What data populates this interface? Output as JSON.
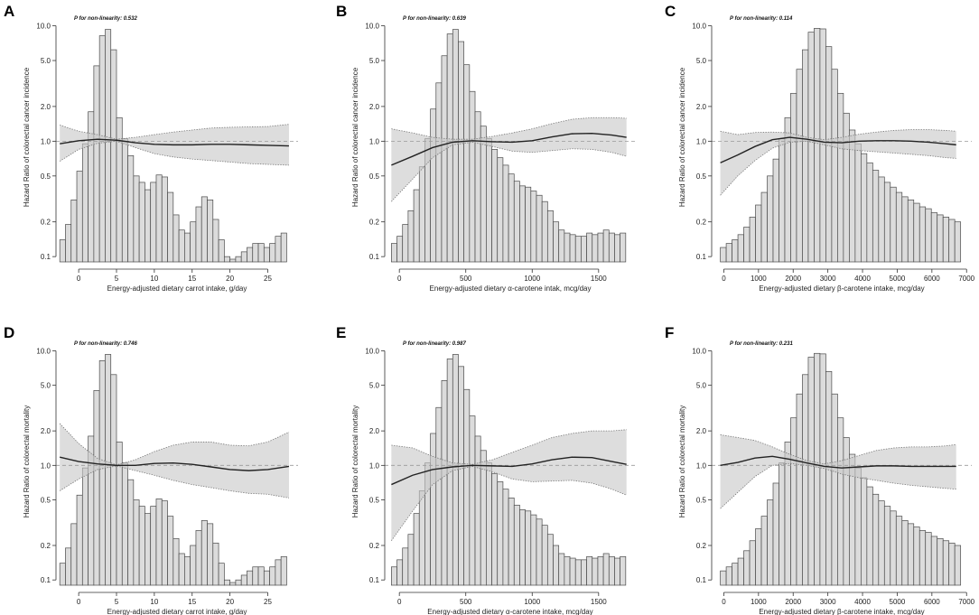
{
  "chart_data": [
    {
      "panel": "A",
      "type": "bar",
      "xlabel": "Energy-adjusted dietary carrot intake, g/day",
      "ylabel": "Hazard Ratio of colorectal cancer incidence",
      "annotation": "P for non-linearity: 0.532",
      "xlim": [
        -3,
        29
      ],
      "xticks": [
        0,
        5,
        10,
        15,
        20,
        25
      ],
      "xtick_labels": [
        "0",
        "5",
        "10",
        "15",
        "20",
        "25"
      ],
      "yticks": [
        0.1,
        0.2,
        0.5,
        1.0,
        2.0,
        5.0,
        10.0
      ],
      "ytick_labels": [
        "0.1",
        "0.2",
        "0.5",
        "1.0",
        "2.0",
        "5.0",
        "10.0"
      ],
      "ylim": [
        0.09,
        13
      ],
      "reference_line": 1.0,
      "bins": {
        "start": -2.5,
        "width": 0.75
      },
      "values": [
        0.14,
        0.19,
        0.31,
        0.55,
        0.95,
        1.8,
        4.5,
        8.2,
        9.3,
        6.2,
        1.6,
        1.05,
        0.75,
        0.5,
        0.44,
        0.38,
        0.44,
        0.51,
        0.49,
        0.36,
        0.23,
        0.17,
        0.16,
        0.2,
        0.27,
        0.33,
        0.31,
        0.21,
        0.14,
        0.1,
        0.095,
        0.1,
        0.11,
        0.12,
        0.13,
        0.13,
        0.12,
        0.13,
        0.15,
        0.16
      ],
      "hr_x": [
        -2.5,
        0,
        2.5,
        5,
        7.5,
        10,
        12.5,
        15,
        17.5,
        20,
        22.5,
        25,
        27.8
      ],
      "hr": [
        0.95,
        1.01,
        1.04,
        1.02,
        0.97,
        0.94,
        0.93,
        0.93,
        0.94,
        0.94,
        0.93,
        0.92,
        0.91
      ],
      "ci_lower": [
        0.67,
        0.85,
        0.96,
        1.0,
        0.88,
        0.78,
        0.73,
        0.7,
        0.68,
        0.66,
        0.64,
        0.63,
        0.62
      ],
      "ci_upper": [
        1.38,
        1.22,
        1.14,
        1.04,
        1.08,
        1.14,
        1.2,
        1.25,
        1.3,
        1.32,
        1.33,
        1.34,
        1.4
      ]
    },
    {
      "panel": "B",
      "type": "bar",
      "xlabel": "Energy-adjusted dietary α-carotene intak, mcg/day",
      "ylabel": "Hazard Ratio of colorectal cancer incidence",
      "annotation": "P for non-linearity: 0.639",
      "xlim": [
        -110,
        1780
      ],
      "xticks": [
        0,
        500,
        1000,
        1500
      ],
      "xtick_labels": [
        "0",
        "500",
        "1000",
        "1500"
      ],
      "yticks": [
        0.1,
        0.2,
        0.5,
        1.0,
        2.0,
        5.0,
        10.0
      ],
      "ytick_labels": [
        "0.1",
        "0.2",
        "0.5",
        "1.0",
        "2.0",
        "5.0",
        "10.0"
      ],
      "ylim": [
        0.09,
        13
      ],
      "reference_line": 1.0,
      "bins": {
        "start": -60,
        "width": 42
      },
      "values": [
        0.13,
        0.15,
        0.19,
        0.25,
        0.38,
        0.6,
        1.05,
        1.9,
        3.2,
        5.5,
        8.5,
        9.3,
        7.3,
        4.6,
        2.7,
        1.8,
        1.35,
        1.05,
        0.85,
        0.72,
        0.62,
        0.52,
        0.45,
        0.41,
        0.4,
        0.37,
        0.34,
        0.3,
        0.25,
        0.2,
        0.17,
        0.16,
        0.155,
        0.15,
        0.15,
        0.16,
        0.155,
        0.16,
        0.17,
        0.16,
        0.155,
        0.16
      ],
      "hr_x": [
        -60,
        100,
        250,
        400,
        550,
        700,
        850,
        1000,
        1150,
        1300,
        1450,
        1600,
        1710
      ],
      "hr": [
        0.62,
        0.74,
        0.88,
        0.98,
        1.01,
        0.99,
        0.98,
        1.01,
        1.09,
        1.16,
        1.17,
        1.13,
        1.08
      ],
      "ci_lower": [
        0.3,
        0.47,
        0.72,
        0.93,
        0.98,
        0.9,
        0.82,
        0.8,
        0.83,
        0.86,
        0.85,
        0.8,
        0.74
      ],
      "ci_upper": [
        1.28,
        1.18,
        1.08,
        1.04,
        1.04,
        1.1,
        1.18,
        1.28,
        1.42,
        1.55,
        1.6,
        1.6,
        1.58
      ]
    },
    {
      "panel": "C",
      "type": "bar",
      "xlabel": "Energy-adjusted dietary β-carotene intake, mcg/day",
      "ylabel": "Hazard Ratio of colorectal cancer incidence",
      "annotation": "P for non-linearity: 0.114",
      "xlim": [
        -350,
        7150
      ],
      "xticks": [
        0,
        1000,
        2000,
        3000,
        4000,
        5000,
        6000,
        7000
      ],
      "xtick_labels": [
        "0",
        "1000",
        "2000",
        "3000",
        "4000",
        "5000",
        "6000",
        "7000"
      ],
      "yticks": [
        0.1,
        0.2,
        0.5,
        1.0,
        2.0,
        5.0,
        10.0
      ],
      "ytick_labels": [
        "0.1",
        "0.2",
        "0.5",
        "1.0",
        "2.0",
        "5.0",
        "10.0"
      ],
      "ylim": [
        0.09,
        13
      ],
      "reference_line": 1.0,
      "bins": {
        "start": -100,
        "width": 169
      },
      "values": [
        0.12,
        0.13,
        0.14,
        0.155,
        0.18,
        0.22,
        0.28,
        0.36,
        0.5,
        0.7,
        1.05,
        1.6,
        2.6,
        4.2,
        6.2,
        8.8,
        9.5,
        9.4,
        6.6,
        4.2,
        2.6,
        1.75,
        1.25,
        0.95,
        0.78,
        0.65,
        0.56,
        0.49,
        0.44,
        0.4,
        0.36,
        0.33,
        0.31,
        0.29,
        0.27,
        0.26,
        0.24,
        0.23,
        0.22,
        0.21,
        0.2
      ],
      "hr_x": [
        -100,
        400,
        900,
        1400,
        1900,
        2400,
        2900,
        3400,
        3900,
        4400,
        4900,
        5400,
        5900,
        6400,
        6700
      ],
      "hr": [
        0.65,
        0.76,
        0.9,
        1.03,
        1.08,
        1.04,
        0.98,
        0.97,
        1.0,
        1.01,
        1.01,
        1.0,
        0.98,
        0.95,
        0.93
      ],
      "ci_lower": [
        0.34,
        0.5,
        0.68,
        0.87,
        0.98,
        1.0,
        0.93,
        0.86,
        0.83,
        0.81,
        0.79,
        0.77,
        0.75,
        0.72,
        0.71
      ],
      "ci_upper": [
        1.22,
        1.14,
        1.19,
        1.2,
        1.18,
        1.08,
        1.03,
        1.08,
        1.15,
        1.2,
        1.24,
        1.26,
        1.26,
        1.24,
        1.22
      ]
    },
    {
      "panel": "D",
      "type": "bar",
      "xlabel": "Energy-adjusted dietary carrot intake, g/day",
      "ylabel": "Hazard Ratio of colorectal mortality",
      "annotation": "P for non-linearity: 0.746",
      "xlim": [
        -3,
        29
      ],
      "xticks": [
        0,
        5,
        10,
        15,
        20,
        25
      ],
      "xtick_labels": [
        "0",
        "5",
        "10",
        "15",
        "20",
        "25"
      ],
      "yticks": [
        0.1,
        0.2,
        0.5,
        1.0,
        2.0,
        5.0,
        10.0
      ],
      "ytick_labels": [
        "0.1",
        "0.2",
        "0.5",
        "1.0",
        "2.0",
        "5.0",
        "10.0"
      ],
      "ylim": [
        0.09,
        13
      ],
      "reference_line": 1.0,
      "bins": {
        "start": -2.5,
        "width": 0.75
      },
      "values": [
        0.14,
        0.19,
        0.31,
        0.55,
        0.95,
        1.8,
        4.5,
        8.2,
        9.3,
        6.2,
        1.6,
        1.05,
        0.75,
        0.5,
        0.44,
        0.38,
        0.44,
        0.51,
        0.49,
        0.36,
        0.23,
        0.17,
        0.16,
        0.2,
        0.27,
        0.33,
        0.31,
        0.21,
        0.14,
        0.1,
        0.095,
        0.1,
        0.11,
        0.12,
        0.13,
        0.13,
        0.12,
        0.13,
        0.15,
        0.16
      ],
      "hr_x": [
        -2.5,
        0,
        2.5,
        5,
        7.5,
        10,
        12.5,
        15,
        17.5,
        20,
        22.5,
        25,
        27.8
      ],
      "hr": [
        1.18,
        1.08,
        1.03,
        1.0,
        1.0,
        1.04,
        1.05,
        1.02,
        0.97,
        0.92,
        0.9,
        0.92,
        0.98
      ],
      "ci_lower": [
        0.6,
        0.76,
        0.92,
        0.99,
        0.9,
        0.82,
        0.74,
        0.68,
        0.64,
        0.6,
        0.57,
        0.56,
        0.52
      ],
      "ci_upper": [
        2.32,
        1.55,
        1.15,
        1.01,
        1.12,
        1.32,
        1.5,
        1.6,
        1.6,
        1.5,
        1.48,
        1.6,
        1.95
      ]
    },
    {
      "panel": "E",
      "type": "bar",
      "xlabel": "Energy-adjusted dietary α-carotene intake, mcg/day",
      "ylabel": "Hazard Ratio of colorectal mortality",
      "annotation": "P for non-linearity: 0.987",
      "xlim": [
        -110,
        1780
      ],
      "xticks": [
        0,
        500,
        1000,
        1500
      ],
      "xtick_labels": [
        "0",
        "500",
        "1000",
        "1500"
      ],
      "yticks": [
        0.1,
        0.2,
        0.5,
        1.0,
        2.0,
        5.0,
        10.0
      ],
      "ytick_labels": [
        "0.1",
        "0.2",
        "0.5",
        "1.0",
        "2.0",
        "5.0",
        "10.0"
      ],
      "ylim": [
        0.09,
        13
      ],
      "reference_line": 1.0,
      "bins": {
        "start": -60,
        "width": 42
      },
      "values": [
        0.13,
        0.15,
        0.19,
        0.25,
        0.38,
        0.6,
        1.05,
        1.9,
        3.2,
        5.5,
        8.5,
        9.3,
        7.3,
        4.6,
        2.7,
        1.8,
        1.35,
        1.05,
        0.85,
        0.72,
        0.62,
        0.52,
        0.45,
        0.41,
        0.4,
        0.37,
        0.34,
        0.3,
        0.25,
        0.2,
        0.17,
        0.16,
        0.155,
        0.15,
        0.15,
        0.16,
        0.155,
        0.16,
        0.17,
        0.16,
        0.155,
        0.16
      ],
      "hr_x": [
        -60,
        100,
        250,
        400,
        550,
        700,
        850,
        1000,
        1150,
        1300,
        1450,
        1600,
        1710
      ],
      "hr": [
        0.68,
        0.82,
        0.92,
        0.97,
        1.0,
        0.99,
        0.98,
        1.03,
        1.12,
        1.18,
        1.17,
        1.08,
        1.02
      ],
      "ci_lower": [
        0.22,
        0.4,
        0.68,
        0.9,
        0.98,
        0.88,
        0.76,
        0.72,
        0.73,
        0.74,
        0.7,
        0.62,
        0.55
      ],
      "ci_upper": [
        1.5,
        1.42,
        1.2,
        1.05,
        1.02,
        1.12,
        1.3,
        1.5,
        1.75,
        1.9,
        2.0,
        2.0,
        2.05
      ]
    },
    {
      "panel": "F",
      "type": "bar",
      "xlabel": "Energy-adjusted dietary β-carotene intake, mcg/day",
      "ylabel": "Hazard Ratio of colorectal mortality",
      "annotation": "P for non-linearity: 0.231",
      "xlim": [
        -350,
        7150
      ],
      "xticks": [
        0,
        1000,
        2000,
        3000,
        4000,
        5000,
        6000,
        7000
      ],
      "xtick_labels": [
        "0",
        "1000",
        "2000",
        "3000",
        "4000",
        "5000",
        "6000",
        "7000"
      ],
      "yticks": [
        0.1,
        0.2,
        0.5,
        1.0,
        2.0,
        5.0,
        10.0
      ],
      "ytick_labels": [
        "0.1",
        "0.2",
        "0.5",
        "1.0",
        "2.0",
        "5.0",
        "10.0"
      ],
      "ylim": [
        0.09,
        13
      ],
      "reference_line": 1.0,
      "bins": {
        "start": -100,
        "width": 169
      },
      "values": [
        0.12,
        0.13,
        0.14,
        0.155,
        0.18,
        0.22,
        0.28,
        0.36,
        0.5,
        0.7,
        1.05,
        1.6,
        2.6,
        4.2,
        6.2,
        8.8,
        9.5,
        9.4,
        6.6,
        4.2,
        2.6,
        1.75,
        1.25,
        0.95,
        0.78,
        0.65,
        0.56,
        0.49,
        0.44,
        0.4,
        0.36,
        0.33,
        0.31,
        0.29,
        0.27,
        0.26,
        0.24,
        0.23,
        0.22,
        0.21,
        0.2
      ],
      "hr_x": [
        -100,
        400,
        900,
        1400,
        1900,
        2400,
        2900,
        3400,
        3900,
        4400,
        4900,
        5400,
        5900,
        6400,
        6700
      ],
      "hr": [
        1.0,
        1.06,
        1.16,
        1.2,
        1.13,
        1.05,
        0.98,
        0.95,
        0.97,
        0.99,
        0.99,
        0.98,
        0.98,
        0.98,
        0.98
      ],
      "ci_lower": [
        0.42,
        0.58,
        0.8,
        1.0,
        1.04,
        1.0,
        0.94,
        0.84,
        0.78,
        0.74,
        0.7,
        0.67,
        0.65,
        0.63,
        0.62
      ],
      "ci_upper": [
        1.85,
        1.75,
        1.65,
        1.45,
        1.25,
        1.1,
        1.03,
        1.1,
        1.22,
        1.35,
        1.42,
        1.45,
        1.45,
        1.48,
        1.52
      ]
    }
  ]
}
